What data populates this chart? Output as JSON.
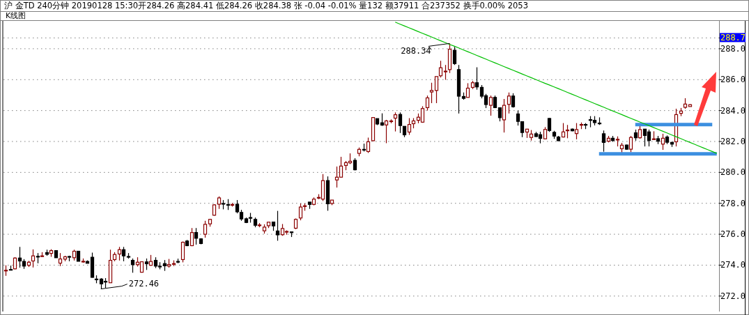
{
  "chart_data": {
    "type": "candlestick",
    "title": "沪 金TD 240分钟 20190128 15:30开284.26 高284.41 低284.26 收284.38 张 -0.04 -0.01% 量132 额37911 合237352 换手0.00% 2053",
    "annotations": [
      "K线图",
      "288.34",
      "272.46"
    ],
    "categories": [
      null,
      null,
      null,
      null,
      null,
      null,
      null,
      null,
      null,
      null,
      null,
      null,
      null,
      null,
      null,
      null,
      null,
      null,
      null,
      null,
      null,
      null,
      null,
      null,
      null,
      null,
      null,
      null,
      null,
      null,
      null,
      null,
      null,
      null,
      null,
      null,
      null,
      null,
      null,
      null,
      null,
      null,
      null,
      null,
      null,
      null,
      null,
      null,
      null,
      null,
      null,
      null,
      null,
      null,
      null,
      null,
      null,
      null,
      null,
      null,
      null,
      null,
      null,
      null,
      null,
      null,
      null,
      null,
      null,
      null,
      null,
      null,
      null,
      null,
      null,
      null,
      null,
      null,
      null,
      null,
      null,
      null,
      null,
      null,
      null,
      null,
      null,
      null,
      null,
      null,
      null,
      null,
      null,
      null,
      null,
      null,
      null,
      null,
      null,
      null,
      null,
      null,
      null,
      null,
      null,
      null,
      null,
      null,
      null,
      null,
      null,
      null,
      null,
      null,
      null,
      null,
      null,
      null,
      null,
      null,
      null,
      null,
      null,
      null,
      null,
      null,
      null,
      null,
      null,
      null,
      null,
      null,
      null,
      null,
      null,
      null,
      null,
      null,
      null,
      null,
      null,
      null,
      null,
      null,
      null,
      null,
      null,
      null,
      null,
      null,
      null,
      null,
      null,
      null,
      null,
      null,
      null,
      null
    ],
    "ohlc": [
      [
        273.64,
        273.99,
        273.31,
        273.67
      ],
      [
        273.72,
        273.97,
        273.71,
        273.71
      ],
      [
        273.76,
        274.51,
        273.73,
        274.46
      ],
      [
        274.46,
        275.18,
        273.84,
        274.27
      ],
      [
        274.24,
        274.39,
        273.76,
        273.94
      ],
      [
        273.99,
        274.28,
        273.88,
        274.19
      ],
      [
        274.27,
        275.02,
        273.85,
        274.6
      ],
      [
        274.57,
        274.78,
        274.12,
        274.56
      ],
      [
        274.59,
        274.84,
        274.54,
        274.6
      ],
      [
        274.81,
        275.0,
        274.61,
        274.7
      ],
      [
        274.76,
        275.03,
        274.54,
        274.94
      ],
      [
        274.94,
        274.96,
        274.48,
        274.48
      ],
      [
        274.13,
        274.78,
        273.94,
        274.4
      ],
      [
        274.39,
        274.61,
        274.25,
        274.54
      ],
      [
        274.56,
        274.61,
        274.25,
        274.54
      ],
      [
        274.48,
        275.0,
        274.3,
        274.9
      ],
      [
        274.9,
        274.91,
        274.25,
        274.25
      ],
      [
        274.24,
        274.43,
        274.16,
        274.25
      ],
      [
        274.24,
        274.31,
        274.12,
        274.12
      ],
      [
        274.51,
        274.81,
        273.19,
        273.21
      ],
      [
        273.1,
        273.34,
        272.83,
        273.09
      ],
      [
        273.1,
        273.16,
        272.46,
        272.79
      ],
      [
        272.95,
        273.16,
        272.53,
        272.94
      ],
      [
        272.86,
        275.0,
        272.86,
        274.31
      ],
      [
        274.36,
        274.84,
        274.25,
        274.69
      ],
      [
        274.72,
        275.18,
        274.3,
        275.0
      ],
      [
        275.0,
        275.18,
        274.25,
        274.6
      ],
      [
        274.56,
        274.78,
        274.42,
        274.55
      ],
      [
        274.31,
        274.43,
        273.51,
        274.03
      ],
      [
        274.03,
        274.51,
        273.91,
        274.19
      ],
      [
        273.54,
        274.24,
        273.52,
        274.22
      ],
      [
        274.21,
        274.43,
        273.69,
        274.09
      ],
      [
        273.99,
        274.66,
        273.96,
        274.24
      ],
      [
        274.31,
        274.51,
        273.81,
        273.94
      ],
      [
        273.93,
        274.19,
        273.73,
        273.92
      ],
      [
        274.1,
        274.33,
        273.63,
        273.96
      ],
      [
        273.94,
        274.4,
        273.84,
        274.04
      ],
      [
        274.09,
        274.31,
        273.94,
        274.1
      ],
      [
        274.24,
        274.42,
        274.12,
        274.23
      ],
      [
        274.36,
        275.53,
        274.18,
        275.48
      ],
      [
        275.56,
        275.63,
        275.23,
        275.26
      ],
      [
        275.26,
        276.4,
        275.23,
        276.11
      ],
      [
        276.11,
        276.4,
        275.33,
        275.74
      ],
      [
        275.7,
        275.74,
        275.35,
        275.4
      ],
      [
        276.0,
        276.87,
        275.78,
        276.64
      ],
      [
        276.67,
        276.99,
        276.49,
        276.96
      ],
      [
        277.23,
        277.94,
        277.2,
        277.9
      ],
      [
        277.94,
        278.45,
        277.64,
        278.35
      ],
      [
        277.99,
        278.21,
        277.61,
        277.98
      ],
      [
        277.92,
        278.27,
        277.57,
        277.91
      ],
      [
        277.91,
        278.03,
        277.79,
        277.92
      ],
      [
        277.94,
        278.21,
        277.35,
        277.45
      ],
      [
        277.41,
        277.58,
        276.87,
        276.99
      ],
      [
        277.0,
        277.08,
        276.72,
        276.76
      ],
      [
        277.08,
        277.38,
        276.75,
        277.07
      ],
      [
        276.96,
        277.08,
        276.45,
        276.58
      ],
      [
        276.59,
        276.72,
        276.45,
        276.6
      ],
      [
        276.22,
        276.64,
        276.04,
        276.46
      ],
      [
        276.55,
        276.78,
        276.4,
        276.78
      ],
      [
        276.79,
        276.79,
        276.22,
        276.54
      ],
      [
        276.21,
        277.51,
        275.58,
        275.96
      ],
      [
        275.97,
        276.66,
        275.9,
        276.37
      ],
      [
        276.17,
        276.25,
        275.97,
        276.18
      ],
      [
        276.15,
        276.15,
        275.82,
        276.14
      ],
      [
        276.39,
        277.02,
        276.33,
        276.96
      ],
      [
        277.05,
        277.99,
        276.9,
        277.76
      ],
      [
        277.83,
        277.99,
        277.52,
        277.84
      ],
      [
        278.08,
        278.08,
        277.64,
        277.93
      ],
      [
        277.93,
        278.38,
        277.87,
        278.27
      ],
      [
        278.37,
        278.59,
        278.27,
        278.38
      ],
      [
        278.27,
        279.89,
        278.15,
        279.47
      ],
      [
        279.47,
        279.74,
        277.52,
        277.97
      ],
      [
        277.99,
        278.21,
        277.88,
        278.21
      ],
      [
        279.51,
        280.38,
        279.02,
        279.69
      ],
      [
        279.69,
        281.01,
        279.69,
        280.41
      ],
      [
        280.45,
        280.74,
        280.14,
        280.63
      ],
      [
        280.62,
        281.23,
        280.54,
        280.72
      ],
      [
        280.78,
        280.92,
        280.13,
        280.17
      ],
      [
        281.23,
        281.61,
        281.04,
        281.49
      ],
      [
        281.49,
        281.86,
        281.35,
        281.48
      ],
      [
        281.35,
        282.25,
        281.26,
        281.98
      ],
      [
        282.05,
        283.55,
        282.02,
        283.55
      ],
      [
        283.48,
        283.48,
        283.06,
        283.13
      ],
      [
        283.21,
        283.82,
        283.01,
        283.06
      ],
      [
        283.07,
        283.4,
        281.89,
        283.33
      ],
      [
        283.32,
        283.43,
        283.18,
        283.33
      ],
      [
        283.51,
        283.88,
        282.65,
        283.73
      ],
      [
        283.75,
        283.88,
        282.55,
        283.03
      ],
      [
        282.98,
        282.98,
        282.28,
        282.43
      ],
      [
        282.61,
        283.51,
        282.43,
        283.1
      ],
      [
        283.15,
        283.51,
        282.85,
        283.33
      ],
      [
        283.37,
        283.81,
        283.18,
        283.57
      ],
      [
        283.25,
        284.28,
        283.21,
        284.13
      ],
      [
        284.19,
        284.97,
        284.0,
        284.82
      ],
      [
        285.2,
        285.8,
        284.48,
        285.3
      ],
      [
        285.3,
        286.2,
        284.48,
        286.2
      ],
      [
        286.25,
        287.22,
        286.14,
        286.77
      ],
      [
        286.54,
        286.95,
        285.99,
        286.55
      ],
      [
        286.65,
        288.34,
        286.43,
        287.97
      ],
      [
        287.9,
        288.12,
        286.95,
        287.04
      ],
      [
        286.65,
        286.95,
        283.81,
        284.93
      ],
      [
        284.91,
        285.17,
        284.7,
        284.79
      ],
      [
        284.85,
        285.77,
        284.85,
        285.45
      ],
      [
        285.5,
        285.92,
        285.39,
        285.8
      ],
      [
        285.8,
        286.8,
        285.35,
        285.53
      ],
      [
        285.5,
        285.65,
        284.79,
        284.93
      ],
      [
        284.96,
        285.08,
        284.16,
        284.39
      ],
      [
        284.34,
        284.97,
        283.67,
        284.85
      ],
      [
        284.85,
        284.97,
        284.16,
        284.19
      ],
      [
        284.18,
        284.18,
        283.3,
        283.54
      ],
      [
        283.4,
        284.75,
        282.58,
        284.34
      ],
      [
        284.4,
        285.17,
        283.81,
        284.94
      ],
      [
        284.94,
        285.12,
        284.19,
        284.25
      ],
      [
        283.78,
        284.0,
        283.03,
        283.3
      ],
      [
        283.28,
        283.28,
        282.28,
        282.58
      ],
      [
        282.61,
        282.8,
        282.23,
        282.8
      ],
      [
        282.26,
        282.74,
        282.06,
        282.48
      ],
      [
        282.5,
        282.62,
        282.29,
        282.32
      ],
      [
        282.44,
        282.63,
        281.88,
        282.2
      ],
      [
        282.17,
        282.93,
        282.14,
        282.78
      ],
      [
        283.49,
        283.52,
        282.62,
        282.71
      ],
      [
        282.59,
        282.69,
        282.17,
        282.35
      ],
      [
        282.29,
        282.36,
        282.02,
        282.05
      ],
      [
        282.29,
        283.19,
        282.26,
        282.62
      ],
      [
        282.73,
        283.07,
        282.21,
        282.74
      ],
      [
        282.8,
        282.84,
        282.66,
        282.69
      ],
      [
        282.51,
        283.19,
        282.14,
        282.77
      ],
      [
        283.09,
        283.23,
        282.8,
        283.1
      ],
      [
        283.1,
        283.19,
        282.8,
        283.09
      ],
      [
        283.41,
        283.64,
        282.92,
        283.4
      ],
      [
        283.37,
        283.64,
        283.04,
        283.22
      ],
      [
        283.19,
        283.56,
        283.07,
        283.18
      ],
      [
        282.5,
        282.71,
        281.34,
        281.94
      ],
      [
        282.02,
        282.36,
        281.94,
        282.21
      ],
      [
        282.21,
        282.36,
        281.98,
        282.06
      ],
      [
        282.13,
        282.33,
        281.68,
        282.14
      ],
      [
        281.53,
        281.91,
        281.28,
        281.76
      ],
      [
        281.77,
        281.8,
        281.46,
        281.5
      ],
      [
        281.5,
        282.36,
        281.31,
        282.26
      ],
      [
        282.56,
        282.77,
        282.05,
        282.24
      ],
      [
        282.24,
        283.04,
        282.18,
        282.77
      ],
      [
        282.8,
        282.8,
        281.68,
        282.39
      ],
      [
        282.62,
        282.77,
        281.68,
        282.06
      ],
      [
        282.16,
        282.66,
        282.11,
        282.17
      ],
      [
        282.18,
        282.36,
        281.83,
        282.02
      ],
      [
        281.83,
        282.5,
        281.46,
        282.21
      ],
      [
        282.29,
        282.39,
        281.83,
        281.95
      ],
      [
        281.94,
        281.98,
        281.65,
        281.83
      ],
      [
        281.98,
        284.12,
        281.68,
        283.74
      ],
      [
        283.82,
        284.17,
        283.64,
        283.97
      ],
      [
        284.21,
        284.8,
        284.12,
        284.42
      ],
      [
        284.26,
        284.41,
        284.26,
        284.38
      ],
      null,
      null,
      null,
      null,
      null,
      null
    ],
    "series": [
      {
        "type": "line",
        "color": "#00c000",
        "values": [
          null,
          null,
          null,
          null,
          null,
          null,
          null,
          null,
          null,
          null,
          null,
          null,
          null,
          null,
          null,
          null,
          null,
          null,
          null,
          null,
          null,
          null,
          null,
          null,
          null,
          null,
          null,
          null,
          null,
          null,
          null,
          null,
          null,
          null,
          null,
          null,
          null,
          null,
          null,
          null,
          null,
          null,
          null,
          null,
          null,
          null,
          null,
          null,
          null,
          null,
          null,
          null,
          null,
          null,
          null,
          null,
          null,
          null,
          null,
          null,
          null,
          null,
          null,
          null,
          null,
          null,
          null,
          null,
          null,
          null,
          null,
          null,
          null,
          null,
          null,
          null,
          null,
          null,
          null,
          null,
          null,
          null,
          null,
          null,
          null,
          null,
          289.72,
          289.6,
          289.48,
          289.36,
          289.24,
          289.12,
          289.0,
          288.88,
          288.76,
          288.64,
          288.52,
          288.4,
          288.28,
          288.17,
          288.05,
          287.93,
          287.81,
          287.69,
          287.57,
          287.45,
          287.33,
          287.21,
          287.09,
          286.97,
          286.85,
          286.73,
          286.61,
          286.49,
          286.37,
          286.25,
          286.13,
          286.01,
          285.89,
          285.77,
          285.66,
          285.54,
          285.42,
          285.3,
          285.18,
          285.06,
          284.94,
          284.82,
          284.7,
          284.58,
          284.46,
          284.34,
          284.22,
          284.1,
          283.98,
          283.86,
          283.74,
          283.62,
          283.5,
          283.38,
          283.26,
          283.15,
          283.03,
          282.91,
          282.79,
          282.67,
          282.55,
          282.43,
          282.31,
          282.19,
          282.07,
          281.95,
          281.83,
          281.71,
          281.59,
          281.47,
          281.35,
          281.23
        ]
      },
      {
        "type": "line",
        "color": "#3c8fe0",
        "values": [
          null,
          null,
          null,
          null,
          null,
          null,
          null,
          null,
          null,
          null,
          null,
          null,
          null,
          null,
          null,
          null,
          null,
          null,
          null,
          null,
          null,
          null,
          null,
          null,
          null,
          null,
          null,
          null,
          null,
          null,
          null,
          null,
          null,
          null,
          null,
          null,
          null,
          null,
          null,
          null,
          null,
          null,
          null,
          null,
          null,
          null,
          null,
          null,
          null,
          null,
          null,
          null,
          null,
          null,
          null,
          null,
          null,
          null,
          null,
          null,
          null,
          null,
          null,
          null,
          null,
          null,
          null,
          null,
          null,
          null,
          null,
          null,
          null,
          null,
          null,
          null,
          null,
          null,
          null,
          null,
          null,
          null,
          null,
          null,
          null,
          null,
          null,
          null,
          null,
          null,
          null,
          null,
          null,
          null,
          null,
          null,
          null,
          null,
          null,
          null,
          null,
          null,
          null,
          null,
          null,
          null,
          null,
          null,
          null,
          null,
          null,
          null,
          null,
          null,
          null,
          null,
          null,
          null,
          null,
          null,
          null,
          null,
          null,
          null,
          null,
          null,
          null,
          null,
          null,
          null,
          null,
          null,
          null,
          null,
          null,
          null,
          null,
          null,
          null,
          283.09,
          283.09,
          283.09,
          283.09,
          283.09,
          283.09,
          283.09,
          283.09,
          283.09,
          283.09,
          283.09,
          283.09,
          283.09,
          283.09,
          283.09,
          283.09,
          283.09,
          283.09,
          null
        ]
      },
      {
        "type": "line",
        "color": "#3c8fe0",
        "values": [
          null,
          null,
          null,
          null,
          null,
          null,
          null,
          null,
          null,
          null,
          null,
          null,
          null,
          null,
          null,
          null,
          null,
          null,
          null,
          null,
          null,
          null,
          null,
          null,
          null,
          null,
          null,
          null,
          null,
          null,
          null,
          null,
          null,
          null,
          null,
          null,
          null,
          null,
          null,
          null,
          null,
          null,
          null,
          null,
          null,
          null,
          null,
          null,
          null,
          null,
          null,
          null,
          null,
          null,
          null,
          null,
          null,
          null,
          null,
          null,
          null,
          null,
          null,
          null,
          null,
          null,
          null,
          null,
          null,
          null,
          null,
          null,
          null,
          null,
          null,
          null,
          null,
          null,
          null,
          null,
          null,
          null,
          null,
          null,
          null,
          null,
          null,
          null,
          null,
          null,
          null,
          null,
          null,
          null,
          null,
          null,
          null,
          null,
          null,
          null,
          null,
          null,
          null,
          null,
          null,
          null,
          null,
          null,
          null,
          null,
          null,
          null,
          null,
          null,
          null,
          null,
          null,
          null,
          null,
          null,
          null,
          null,
          null,
          null,
          null,
          null,
          null,
          null,
          null,
          null,
          null,
          281.2,
          281.2,
          281.2,
          281.2,
          281.2,
          281.2,
          281.2,
          281.2,
          281.2,
          281.2,
          281.2,
          281.2,
          281.2,
          281.2,
          281.2,
          281.2,
          281.2,
          281.2,
          281.2,
          281.2,
          281.2,
          281.2,
          281.2,
          281.2,
          281.2,
          281.2,
          281.2
        ]
      }
    ],
    "ylim": [
      271.0,
      289.8
    ],
    "yticks": [
      {
        "value": 272,
        "label": "272.0"
      },
      {
        "value": 274,
        "label": "274.0"
      },
      {
        "value": 276,
        "label": "276.0"
      },
      {
        "value": 278,
        "label": "278.0"
      },
      {
        "value": 280,
        "label": "280.0"
      },
      {
        "value": 282,
        "label": "282.0"
      },
      {
        "value": 284,
        "label": "284.0"
      },
      {
        "value": 286,
        "label": "286.0"
      },
      {
        "value": 288,
        "label": "288.0"
      },
      {
        "value": 288.7,
        "label": "288.7"
      }
    ],
    "grid": "y"
  }
}
